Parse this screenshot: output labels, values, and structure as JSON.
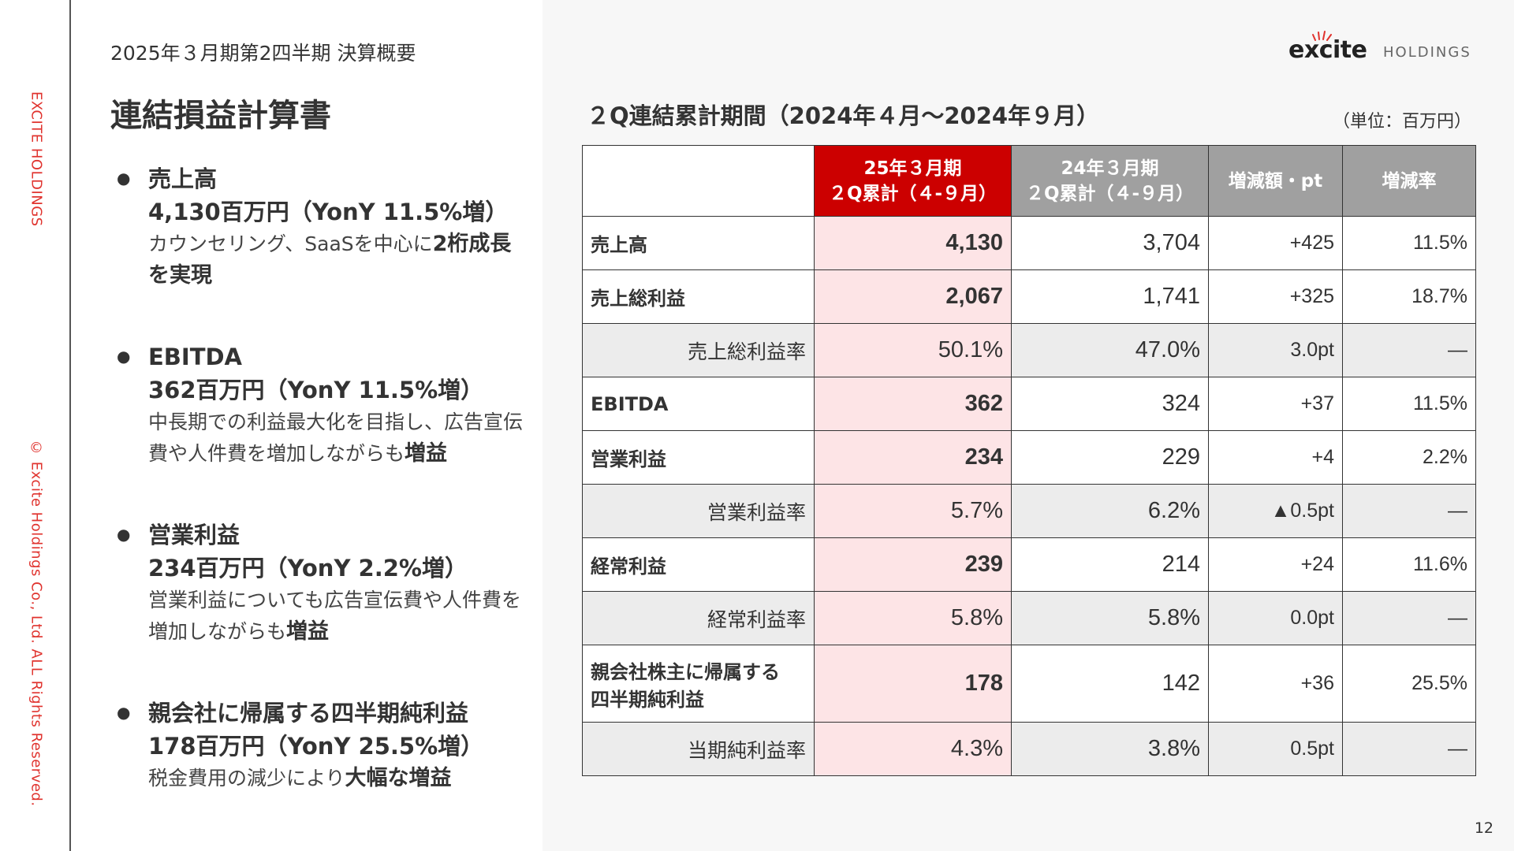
{
  "sidebar": {
    "brand": "EXCITE HOLDINGS",
    "copyright": "© Excite Holdings Co., Ltd. ALL Rights Reserved."
  },
  "header": {
    "subtitle": "2025年３月期第2四半期 決算概要",
    "title": "連結損益計算書"
  },
  "logo": {
    "word": "excite",
    "suffix": "HOLDINGS",
    "colors": {
      "word": "#222222",
      "spark": "#e0332e"
    }
  },
  "bullets": [
    {
      "title": "売上高",
      "value": "4,130百万円（YonY 11.5%増）",
      "desc": "カウンセリング、SaaSを中心に",
      "desc_bold": "2桁成長を実現"
    },
    {
      "title": "EBITDA",
      "value": "362百万円（YonY 11.5%増）",
      "desc": "中長期での利益最大化を目指し、広告宣伝費や人件費を増加しながらも",
      "desc_bold": "増益"
    },
    {
      "title": "営業利益",
      "value": "234百万円（YonY 2.2%増）",
      "desc": "営業利益についても広告宣伝費や人件費を増加しながらも",
      "desc_bold": "増益"
    },
    {
      "title": "親会社に帰属する四半期純利益",
      "value": "178百万円（YonY 25.5%増）",
      "desc": "税金費用の減少により",
      "desc_bold": "大幅な増益"
    }
  ],
  "table": {
    "title": "２Q連結累計期間（2024年４月〜2024年９月）",
    "unit": "（単位：百万円）",
    "headers": {
      "cur_line1": "25年３月期",
      "cur_line2": "２Q累計（４-９月）",
      "prev_line1": "24年３月期",
      "prev_line2": "２Q累計（４-９月）",
      "diff": "増減額・pt",
      "rate": "増減率"
    },
    "rows": [
      {
        "label": "売上高",
        "cur": "4,130",
        "prev": "3,704",
        "diff": "+425",
        "rate": "11.5%"
      },
      {
        "label": "売上総利益",
        "cur": "2,067",
        "prev": "1,741",
        "diff": "+325",
        "rate": "18.7%"
      },
      {
        "label": "売上総利益率",
        "cur": "50.1%",
        "prev": "47.0%",
        "diff": "3.0pt",
        "rate": "—"
      },
      {
        "label": "EBITDA",
        "cur": "362",
        "prev": "324",
        "diff": "+37",
        "rate": "11.5%"
      },
      {
        "label": "営業利益",
        "cur": "234",
        "prev": "229",
        "diff": "+4",
        "rate": "2.2%"
      },
      {
        "label": "営業利益率",
        "cur": "5.7%",
        "prev": "6.2%",
        "diff": "▲0.5pt",
        "rate": "—"
      },
      {
        "label": "経常利益",
        "cur": "239",
        "prev": "214",
        "diff": "+24",
        "rate": "11.6%"
      },
      {
        "label": "経常利益率",
        "cur": "5.8%",
        "prev": "5.8%",
        "diff": "0.0pt",
        "rate": "—"
      },
      {
        "label_line1": "親会社株主に帰属する",
        "label_line2": "四半期純利益",
        "cur": "178",
        "prev": "142",
        "diff": "+36",
        "rate": "25.5%"
      },
      {
        "label": "当期純利益率",
        "cur": "4.3%",
        "prev": "3.8%",
        "diff": "0.5pt",
        "rate": "—"
      }
    ]
  },
  "page_number": "12",
  "colors": {
    "accent": "#cc0000",
    "accent_light": "#fde4e6",
    "header_gray": "#a0a0a0",
    "sidebar_red": "#e0332e"
  }
}
